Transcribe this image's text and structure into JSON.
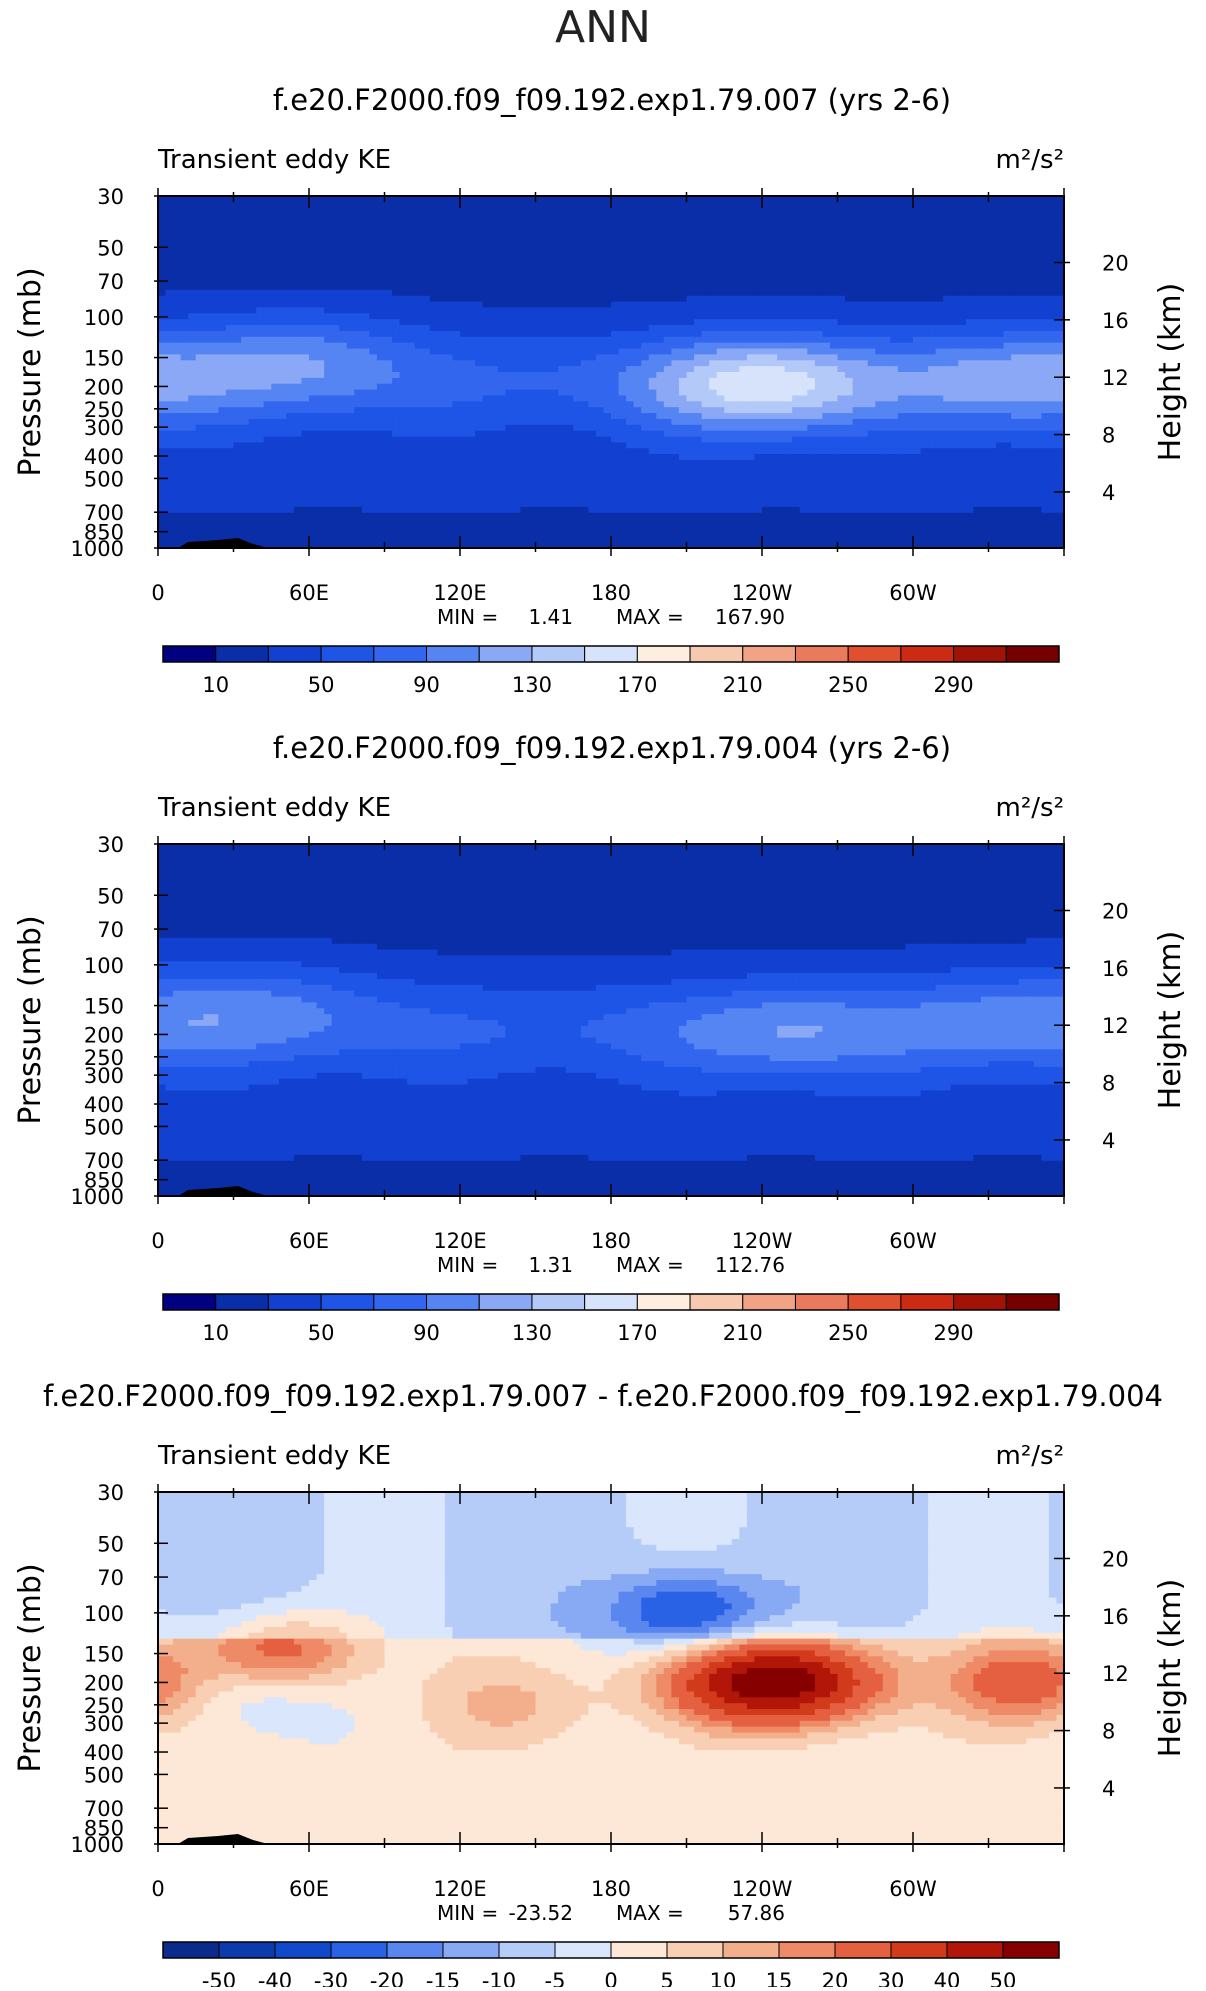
{
  "page_title": "ANN",
  "colors": {
    "abs_scale": [
      "#000080",
      "#0a2ea8",
      "#1240d0",
      "#1e55e6",
      "#3366ee",
      "#5585f2",
      "#8aa8f5",
      "#b3c9f8",
      "#d6e3fb",
      "#fdeee0",
      "#f7c9b0",
      "#f2a385",
      "#ea7a5c",
      "#e0502f",
      "#cc2a12",
      "#a01306",
      "#760000"
    ],
    "diff_scale": [
      "#0a2a8c",
      "#0c3bb0",
      "#1149cc",
      "#2a62e6",
      "#5a86f0",
      "#88a9f4",
      "#b6ccf8",
      "#d9e6fb",
      "#fde7d6",
      "#f9cfb4",
      "#f3ae8c",
      "#ee8a66",
      "#e46040",
      "#d23a1c",
      "#b21608",
      "#860000"
    ],
    "terrain": "#000000"
  },
  "chart_data": [
    {
      "type": "heatmap",
      "title": "f.e20.F2000.f09_f09.192.exp1.79.007 (yrs 2-6)",
      "left_label": "Transient eddy KE",
      "unit_label": "m²/s²",
      "ylabel": "Pressure (mb)",
      "y2label": "Height (km)",
      "y_ticks": [
        "30",
        "50",
        "70",
        "100",
        "150",
        "200",
        "250",
        "300",
        "400",
        "500",
        "700",
        "850",
        "1000"
      ],
      "y2_ticks": [
        "20",
        "16",
        "12",
        "8",
        "4"
      ],
      "x_ticks": [
        "0",
        "60E",
        "120E",
        "180",
        "120W",
        "60W"
      ],
      "min_label": "MIN =",
      "min_value": "1.41",
      "max_label": "MAX =",
      "max_value": "167.90",
      "colorbar_labels": [
        "10",
        "50",
        "90",
        "130",
        "170",
        "210",
        "250",
        "290"
      ],
      "colorbar_levels": [
        10,
        30,
        50,
        70,
        90,
        110,
        130,
        150,
        170,
        190,
        210,
        230,
        250,
        270,
        290,
        310
      ],
      "features": [
        {
          "lon": 55,
          "p": 150,
          "peak": 118
        },
        {
          "lon": 240,
          "p": 200,
          "peak": 168
        },
        {
          "lon": 340,
          "p": 190,
          "peak": 128
        }
      ]
    },
    {
      "type": "heatmap",
      "title": "f.e20.F2000.f09_f09.192.exp1.79.004 (yrs 2-6)",
      "left_label": "Transient eddy KE",
      "unit_label": "m²/s²",
      "ylabel": "Pressure (mb)",
      "y2label": "Height (km)",
      "y_ticks": [
        "30",
        "50",
        "70",
        "100",
        "150",
        "200",
        "250",
        "300",
        "400",
        "500",
        "700",
        "850",
        "1000"
      ],
      "y2_ticks": [
        "20",
        "16",
        "12",
        "8",
        "4"
      ],
      "x_ticks": [
        "0",
        "60E",
        "120E",
        "180",
        "120W",
        "60W"
      ],
      "min_label": "MIN =",
      "min_value": "1.31",
      "max_label": "MAX =",
      "max_value": "112.76",
      "colorbar_labels": [
        "10",
        "50",
        "90",
        "130",
        "170",
        "210",
        "250",
        "290"
      ],
      "colorbar_levels": [
        10,
        30,
        50,
        70,
        90,
        110,
        130,
        150,
        170,
        190,
        210,
        230,
        250,
        270,
        290,
        310
      ],
      "features": [
        {
          "lon": 40,
          "p": 150,
          "peak": 106
        },
        {
          "lon": 250,
          "p": 200,
          "peak": 112
        },
        {
          "lon": 335,
          "p": 170,
          "peak": 104
        }
      ]
    },
    {
      "type": "heatmap",
      "title": "f.e20.F2000.f09_f09.192.exp1.79.007 - f.e20.F2000.f09_f09.192.exp1.79.004",
      "left_label": "Transient eddy KE",
      "unit_label": "m²/s²",
      "ylabel": "Pressure (mb)",
      "y2label": "Height (km)",
      "y_ticks": [
        "30",
        "50",
        "70",
        "100",
        "150",
        "200",
        "250",
        "300",
        "400",
        "500",
        "700",
        "850",
        "1000"
      ],
      "y2_ticks": [
        "20",
        "16",
        "12",
        "8",
        "4"
      ],
      "x_ticks": [
        "0",
        "60E",
        "120E",
        "180",
        "120W",
        "60W"
      ],
      "min_label": "MIN =",
      "min_value": "-23.52",
      "max_label": "MAX =",
      "max_value": "57.86",
      "colorbar_labels": [
        "-50",
        "-40",
        "-30",
        "-20",
        "-15",
        "-10",
        "-5",
        "0",
        "5",
        "10",
        "15",
        "20",
        "30",
        "40",
        "50"
      ],
      "colorbar_levels": [
        -50,
        -40,
        -30,
        -20,
        -15,
        -10,
        -5,
        0,
        5,
        10,
        15,
        20,
        30,
        40,
        50
      ],
      "features": [
        {
          "lon": 50,
          "p": 150,
          "peak": 22
        },
        {
          "lon": 245,
          "p": 200,
          "peak": 57.86
        },
        {
          "lon": 345,
          "p": 200,
          "peak": 24
        },
        {
          "lon": 210,
          "p": 100,
          "peak": -23.52
        },
        {
          "lon": 40,
          "p": 220,
          "peak": -9
        },
        {
          "lon": 140,
          "p": 250,
          "peak": 9
        }
      ]
    }
  ]
}
